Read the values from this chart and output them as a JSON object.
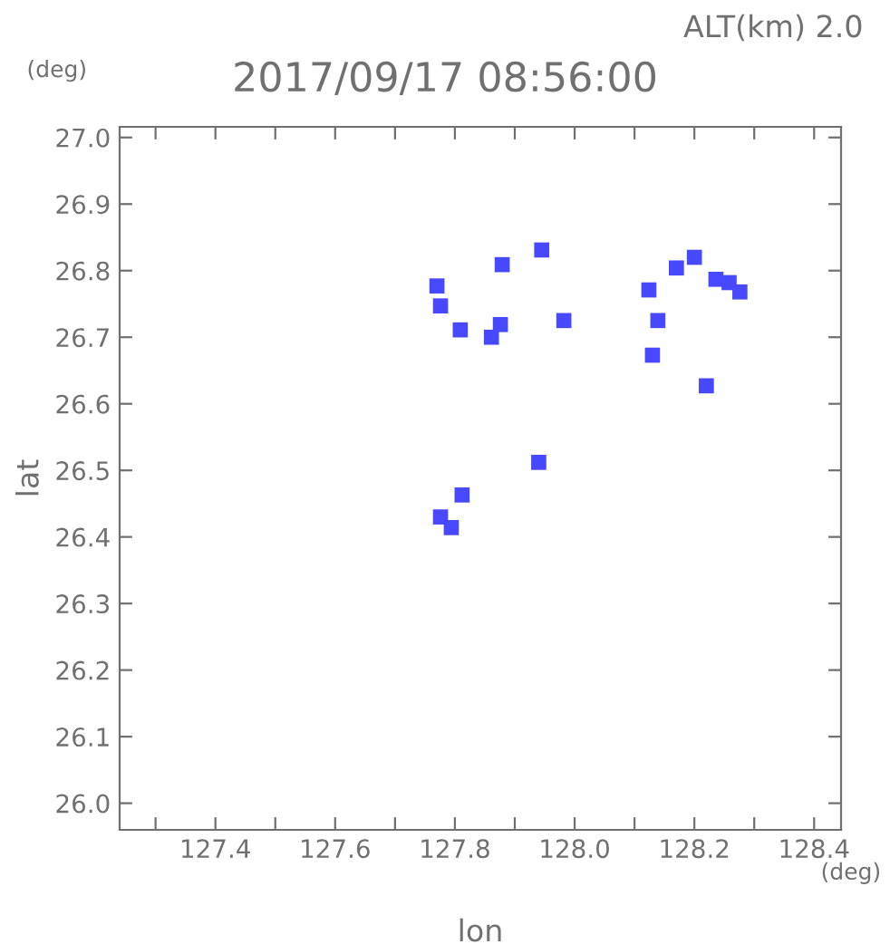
{
  "chart_data": {
    "type": "scatter",
    "title": "2017/09/17 08:56:00",
    "subtitle": "ALT(km) 2.0",
    "xlabel": "lon",
    "ylabel": "lat",
    "annotations": [
      "(deg)",
      "(deg)"
    ],
    "x": [
      127.77,
      127.776,
      127.879,
      127.945,
      127.809,
      127.876,
      127.861,
      127.982,
      128.17,
      128.2,
      128.236,
      128.258,
      128.276,
      128.124,
      128.139,
      128.13,
      128.22,
      127.94,
      127.812,
      127.776,
      127.794
    ],
    "series": [
      {
        "color": "#4848ff",
        "values": [
          26.777,
          26.747,
          26.809,
          26.831,
          26.711,
          26.719,
          26.7,
          26.725,
          26.804,
          26.82,
          26.787,
          26.782,
          26.768,
          26.771,
          26.725,
          26.673,
          26.627,
          26.512,
          26.463,
          26.43,
          26.414
        ]
      }
    ],
    "marker": "square",
    "grid": false,
    "legend": false,
    "xlim": [
      127.24,
      128.445
    ],
    "ylim": [
      25.96,
      27.016
    ],
    "xticks": [
      {
        "value": 127.3,
        "label": null
      },
      127.4,
      {
        "value": 127.5,
        "label": null
      },
      127.6,
      {
        "value": 127.7,
        "label": null
      },
      127.8,
      {
        "value": 127.9,
        "label": null
      },
      {
        "value": 128,
        "label": "128.0"
      },
      {
        "value": 128.1,
        "label": null
      },
      128.2,
      {
        "value": 128.3,
        "label": null
      },
      128.4
    ],
    "yticks": [
      {
        "value": 26,
        "label": "26.0"
      },
      26.1,
      26.2,
      26.3,
      26.4,
      26.5,
      26.6,
      26.7,
      26.8,
      26.9,
      {
        "value": 27,
        "label": "27.0"
      }
    ]
  }
}
